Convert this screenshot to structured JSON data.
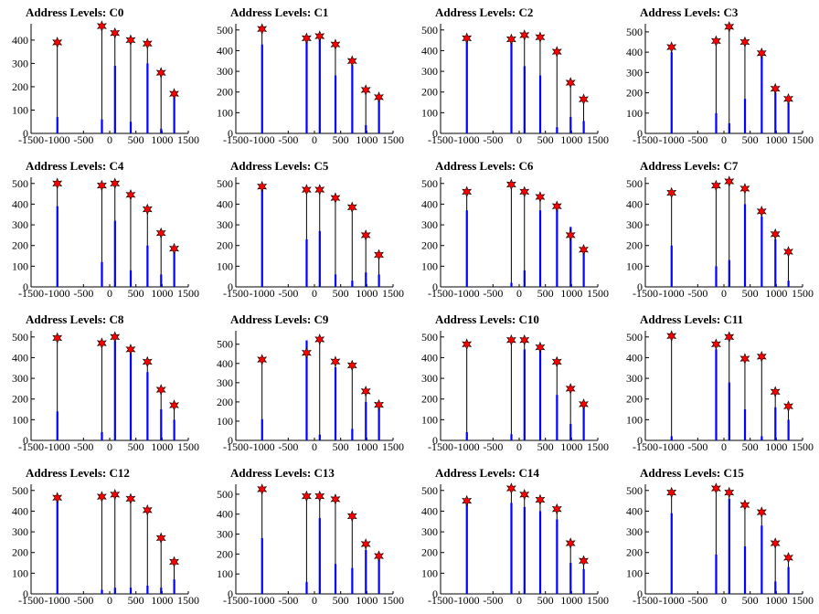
{
  "colors": {
    "bar": "#0000ff",
    "marker": "#ff0000",
    "hist": "#000000"
  },
  "chart_data": [
    {
      "type": "bar",
      "title": "Address Levels: C0",
      "xlim": [
        -1500,
        1500
      ],
      "ylim": [
        0,
        470
      ],
      "yticks": [
        0,
        100,
        200,
        300,
        400
      ],
      "xticks": [
        -1500,
        -1000,
        -500,
        0,
        500,
        1000,
        1500
      ],
      "x": [
        -1000,
        -150,
        100,
        400,
        720,
        980,
        1230
      ],
      "peaks": [
        390,
        460,
        430,
        400,
        385,
        260,
        170
      ],
      "bar_values": [
        70,
        60,
        290,
        50,
        300,
        20,
        160
      ]
    },
    {
      "type": "bar",
      "title": "Address Levels: C1",
      "xlim": [
        -1500,
        1500
      ],
      "ylim": [
        0,
        530
      ],
      "yticks": [
        0,
        100,
        200,
        300,
        400,
        500
      ],
      "xticks": [
        -1500,
        -1000,
        -500,
        0,
        500,
        1000,
        1500
      ],
      "x": [
        -1000,
        -150,
        100,
        400,
        720,
        980,
        1230
      ],
      "peaks": [
        505,
        460,
        470,
        430,
        350,
        210,
        175
      ],
      "bar_values": [
        430,
        460,
        460,
        280,
        330,
        40,
        160
      ]
    },
    {
      "type": "bar",
      "title": "Address Levels: C2",
      "xlim": [
        -1500,
        1500
      ],
      "ylim": [
        0,
        530
      ],
      "yticks": [
        0,
        100,
        200,
        300,
        400,
        500
      ],
      "xticks": [
        -1500,
        -1000,
        -500,
        0,
        500,
        1000,
        1500
      ],
      "x": [
        -1000,
        -150,
        100,
        400,
        720,
        980,
        1230
      ],
      "peaks": [
        460,
        455,
        475,
        465,
        395,
        245,
        165
      ],
      "bar_values": [
        450,
        445,
        325,
        280,
        30,
        80,
        60
      ]
    },
    {
      "type": "bar",
      "title": "Address Levels: C3",
      "xlim": [
        -1500,
        1500
      ],
      "ylim": [
        0,
        540
      ],
      "yticks": [
        0,
        100,
        200,
        300,
        400,
        500
      ],
      "xticks": [
        -1500,
        -1000,
        -500,
        0,
        500,
        1000,
        1500
      ],
      "x": [
        -1000,
        -150,
        100,
        400,
        720,
        980,
        1230
      ],
      "peaks": [
        425,
        455,
        525,
        450,
        395,
        220,
        170
      ],
      "bar_values": [
        400,
        100,
        50,
        170,
        390,
        200,
        150
      ]
    },
    {
      "type": "bar",
      "title": "Address Levels: C4",
      "xlim": [
        -1500,
        1500
      ],
      "ylim": [
        0,
        530
      ],
      "yticks": [
        0,
        100,
        200,
        300,
        400,
        500
      ],
      "xticks": [
        -1500,
        -1000,
        -500,
        0,
        500,
        1000,
        1500
      ],
      "x": [
        -1000,
        -150,
        100,
        400,
        720,
        980,
        1230
      ],
      "peaks": [
        500,
        490,
        500,
        445,
        375,
        260,
        185
      ],
      "bar_values": [
        390,
        120,
        320,
        80,
        200,
        60,
        170
      ]
    },
    {
      "type": "bar",
      "title": "Address Levels: C5",
      "xlim": [
        -1500,
        1500
      ],
      "ylim": [
        0,
        530
      ],
      "yticks": [
        0,
        100,
        200,
        300,
        400,
        500
      ],
      "xticks": [
        -1500,
        -1000,
        -500,
        0,
        500,
        1000,
        1500
      ],
      "x": [
        -1000,
        -150,
        100,
        400,
        720,
        980,
        1230
      ],
      "peaks": [
        485,
        470,
        470,
        430,
        385,
        250,
        155
      ],
      "bar_values": [
        470,
        230,
        270,
        60,
        30,
        70,
        60
      ]
    },
    {
      "type": "bar",
      "title": "Address Levels: C6",
      "xlim": [
        -1500,
        1500
      ],
      "ylim": [
        0,
        530
      ],
      "yticks": [
        0,
        100,
        200,
        300,
        400,
        500
      ],
      "xticks": [
        -1500,
        -1000,
        -500,
        0,
        500,
        1000,
        1500
      ],
      "x": [
        -1000,
        -150,
        100,
        400,
        720,
        980,
        1230
      ],
      "peaks": [
        460,
        495,
        460,
        435,
        390,
        250,
        180
      ],
      "bar_values": [
        370,
        20,
        80,
        370,
        390,
        290,
        170
      ]
    },
    {
      "type": "bar",
      "title": "Address Levels: C7",
      "xlim": [
        -1500,
        1500
      ],
      "ylim": [
        0,
        530
      ],
      "yticks": [
        0,
        100,
        200,
        300,
        400,
        500
      ],
      "xticks": [
        -1500,
        -1000,
        -500,
        0,
        500,
        1000,
        1500
      ],
      "x": [
        -1000,
        -150,
        100,
        400,
        720,
        980,
        1230
      ],
      "peaks": [
        455,
        490,
        510,
        475,
        365,
        255,
        170
      ],
      "bar_values": [
        200,
        100,
        130,
        400,
        340,
        230,
        30
      ]
    },
    {
      "type": "bar",
      "title": "Address Levels: C8",
      "xlim": [
        -1500,
        1500
      ],
      "ylim": [
        0,
        530
      ],
      "yticks": [
        0,
        100,
        200,
        300,
        400,
        500
      ],
      "xticks": [
        -1500,
        -1000,
        -500,
        0,
        500,
        1000,
        1500
      ],
      "x": [
        -1000,
        -150,
        100,
        400,
        720,
        980,
        1230
      ],
      "peaks": [
        495,
        470,
        500,
        440,
        380,
        245,
        170
      ],
      "bar_values": [
        140,
        40,
        480,
        420,
        330,
        150,
        100
      ]
    },
    {
      "type": "bar",
      "title": "Address Levels: C9",
      "xlim": [
        -1500,
        1500
      ],
      "ylim": [
        0,
        570
      ],
      "yticks": [
        0,
        100,
        200,
        300,
        400,
        500
      ],
      "xticks": [
        -1500,
        -1000,
        -500,
        0,
        500,
        1000,
        1500
      ],
      "x": [
        -1000,
        -150,
        100,
        400,
        720,
        980,
        1230
      ],
      "peaks": [
        420,
        455,
        525,
        410,
        390,
        255,
        185
      ],
      "bar_values": [
        110,
        520,
        30,
        380,
        60,
        200,
        170
      ]
    },
    {
      "type": "bar",
      "title": "Address Levels: C10",
      "xlim": [
        -1500,
        1500
      ],
      "ylim": [
        0,
        530
      ],
      "yticks": [
        0,
        100,
        200,
        300,
        400,
        500
      ],
      "xticks": [
        -1500,
        -1000,
        -500,
        0,
        500,
        1000,
        1500
      ],
      "x": [
        -1000,
        -150,
        100,
        400,
        720,
        980,
        1230
      ],
      "peaks": [
        465,
        485,
        485,
        450,
        380,
        250,
        175
      ],
      "bar_values": [
        40,
        30,
        440,
        440,
        220,
        80,
        170
      ]
    },
    {
      "type": "bar",
      "title": "Address Levels: C11",
      "xlim": [
        -1500,
        1500
      ],
      "ylim": [
        0,
        530
      ],
      "yticks": [
        0,
        100,
        200,
        300,
        400,
        500
      ],
      "xticks": [
        -1500,
        -1000,
        -500,
        0,
        500,
        1000,
        1500
      ],
      "x": [
        -1000,
        -150,
        100,
        400,
        720,
        980,
        1230
      ],
      "peaks": [
        505,
        465,
        500,
        395,
        405,
        235,
        165
      ],
      "bar_values": [
        20,
        440,
        280,
        150,
        20,
        160,
        100
      ]
    },
    {
      "type": "bar",
      "title": "Address Levels: C12",
      "xlim": [
        -1500,
        1500
      ],
      "ylim": [
        0,
        530
      ],
      "yticks": [
        0,
        100,
        200,
        300,
        400,
        500
      ],
      "xticks": [
        -1500,
        -1000,
        -500,
        0,
        500,
        1000,
        1500
      ],
      "x": [
        -1000,
        -150,
        100,
        400,
        720,
        980,
        1230
      ],
      "peaks": [
        465,
        470,
        480,
        460,
        405,
        270,
        155
      ],
      "bar_values": [
        460,
        20,
        30,
        30,
        40,
        30,
        70
      ]
    },
    {
      "type": "bar",
      "title": "Address Levels: C13",
      "xlim": [
        -1500,
        1500
      ],
      "ylim": [
        0,
        550
      ],
      "yticks": [
        0,
        100,
        200,
        300,
        400,
        500
      ],
      "xticks": [
        -1500,
        -1000,
        -500,
        0,
        500,
        1000,
        1500
      ],
      "x": [
        -1000,
        -150,
        100,
        400,
        720,
        980,
        1230
      ],
      "peaks": [
        525,
        490,
        490,
        475,
        390,
        250,
        190
      ],
      "bar_values": [
        280,
        60,
        380,
        150,
        130,
        220,
        180
      ]
    },
    {
      "type": "bar",
      "title": "Address Levels: C14",
      "xlim": [
        -1500,
        1500
      ],
      "ylim": [
        0,
        530
      ],
      "yticks": [
        0,
        100,
        200,
        300,
        400,
        500
      ],
      "xticks": [
        -1500,
        -1000,
        -500,
        0,
        500,
        1000,
        1500
      ],
      "x": [
        -1000,
        -150,
        100,
        400,
        720,
        980,
        1230
      ],
      "peaks": [
        450,
        510,
        480,
        455,
        410,
        245,
        160
      ],
      "bar_values": [
        450,
        440,
        420,
        400,
        360,
        150,
        120
      ]
    },
    {
      "type": "bar",
      "title": "Address Levels: C15",
      "xlim": [
        -1500,
        1500
      ],
      "ylim": [
        0,
        530
      ],
      "yticks": [
        0,
        100,
        200,
        300,
        400,
        500
      ],
      "xticks": [
        -1500,
        -1000,
        -500,
        0,
        500,
        1000,
        1500
      ],
      "x": [
        -1000,
        -150,
        100,
        400,
        720,
        980,
        1230
      ],
      "peaks": [
        490,
        510,
        490,
        430,
        395,
        245,
        175
      ],
      "bar_values": [
        390,
        190,
        460,
        230,
        330,
        60,
        130
      ]
    }
  ]
}
